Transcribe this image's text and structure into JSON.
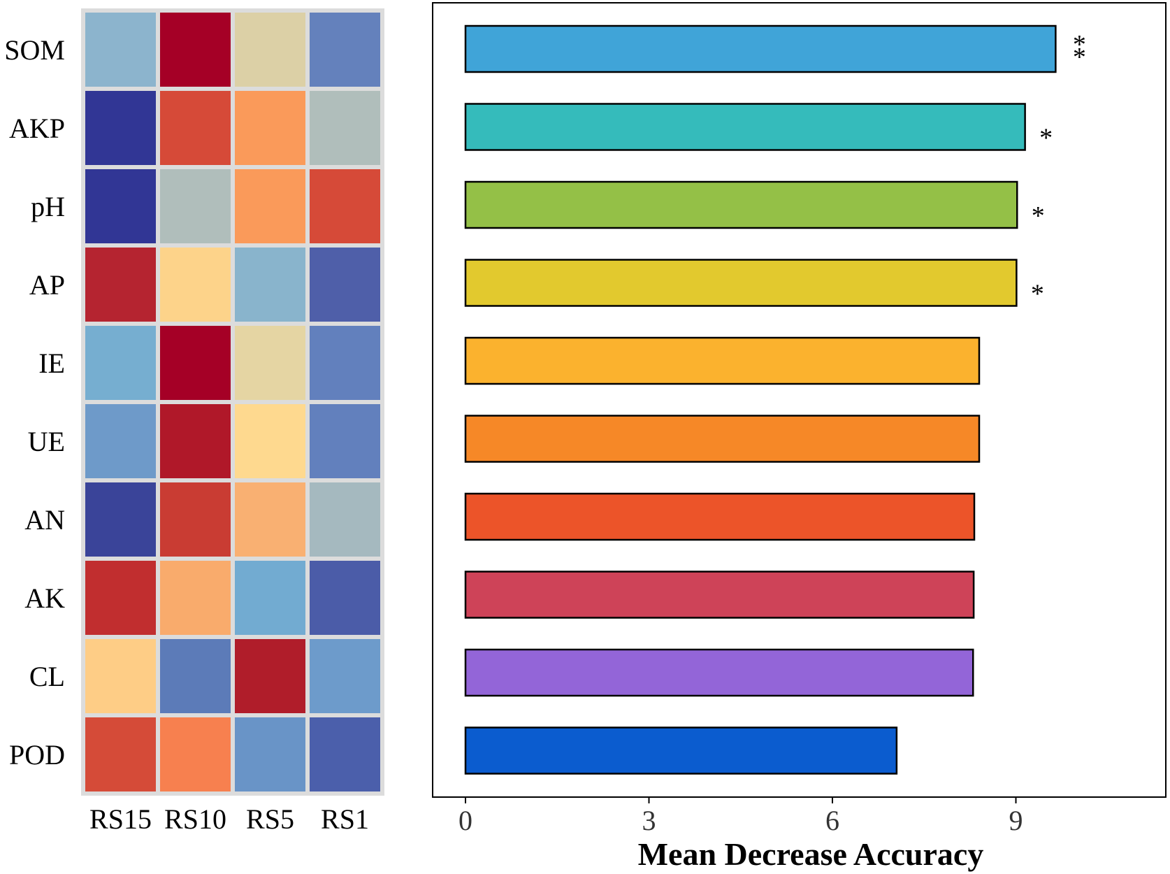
{
  "chart_data": [
    {
      "type": "heatmap",
      "rows": [
        "SOM",
        "AKP",
        "pH",
        "AP",
        "IE",
        "UE",
        "AN",
        "AK",
        "CL",
        "POD"
      ],
      "columns": [
        "RS15",
        "RS10",
        "RS5",
        "RS1"
      ],
      "cell_colors": [
        [
          "#8cb4cd",
          "#a50026",
          "#dcd0a6",
          "#6481bc"
        ],
        [
          "#313695",
          "#d64a38",
          "#fa9a5a",
          "#b0bebb"
        ],
        [
          "#313695",
          "#b0bebb",
          "#fa9a5a",
          "#d64a38"
        ],
        [
          "#b52430",
          "#fdd38a",
          "#89b4cc",
          "#4f5fa9"
        ],
        [
          "#76aed0",
          "#a50026",
          "#e5d5a3",
          "#6280bd"
        ],
        [
          "#6e9ac9",
          "#b01829",
          "#fed98f",
          "#6280bd"
        ],
        [
          "#3a4499",
          "#c93c33",
          "#f9b072",
          "#a5b9bf"
        ],
        [
          "#c12e2f",
          "#f9ab6c",
          "#72abd1",
          "#4b5ca8"
        ],
        [
          "#fecd86",
          "#5c7bb8",
          "#b01d2a",
          "#6d9bcb"
        ],
        [
          "#d54b38",
          "#f7804f",
          "#6994c7",
          "#4b5fab"
        ]
      ]
    },
    {
      "type": "bar",
      "orientation": "horizontal",
      "categories": [
        "SOM",
        "AKP",
        "pH",
        "AP",
        "IE",
        "UE",
        "AN",
        "AK",
        "CL",
        "POD"
      ],
      "values": [
        9.65,
        9.15,
        9.02,
        9.01,
        8.4,
        8.4,
        8.32,
        8.31,
        8.3,
        7.05
      ],
      "significance": [
        "**",
        "*",
        "*",
        "*",
        "",
        "",
        "",
        "",
        "",
        ""
      ],
      "colors": [
        "#40a4d8",
        "#35bbbb",
        "#94c047",
        "#e2c92e",
        "#fbb22e",
        "#f68827",
        "#ec5429",
        "#ce4358",
        "#9365d8",
        "#0b5ccf"
      ],
      "xlabel": "Mean Decrease Accuracy",
      "ylabel": "",
      "xlim": [
        0,
        11.2
      ],
      "xticks": [
        0,
        3,
        6,
        9
      ]
    }
  ]
}
